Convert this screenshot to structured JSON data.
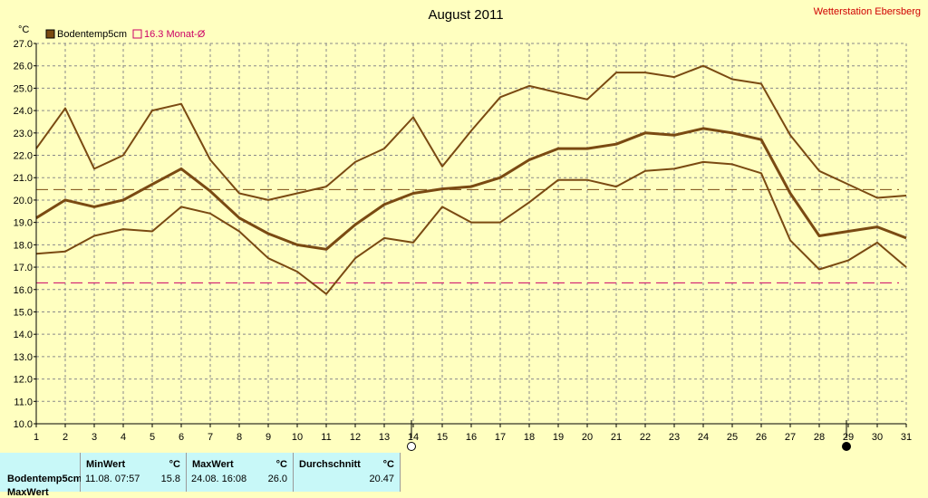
{
  "chart_data": {
    "type": "line",
    "title": "August 2011",
    "station": "Wetterstation Ebersberg",
    "ylabel": "°C",
    "ylim": [
      10.0,
      27.0
    ],
    "yticks": [
      "10.0",
      "11.0",
      "12.0",
      "13.0",
      "14.0",
      "15.0",
      "16.0",
      "17.0",
      "18.0",
      "19.0",
      "20.0",
      "21.0",
      "22.0",
      "23.0",
      "24.0",
      "25.0",
      "26.0",
      "27.0"
    ],
    "x": [
      1,
      2,
      3,
      4,
      5,
      6,
      7,
      8,
      9,
      10,
      11,
      12,
      13,
      14,
      15,
      16,
      17,
      18,
      19,
      20,
      21,
      22,
      23,
      24,
      25,
      26,
      27,
      28,
      29,
      30,
      31
    ],
    "legend": [
      {
        "label": "Bodentemp5cm",
        "color": "#7a4a12",
        "filled": true
      },
      {
        "label": "16.3 Monat-Ø",
        "color": "#cc0066",
        "filled": false
      }
    ],
    "series": [
      {
        "name": "Bodentemp5cm",
        "role": "mean",
        "color": "#7a4a12",
        "values": [
          19.2,
          20.0,
          19.7,
          20.0,
          20.7,
          21.4,
          20.4,
          19.2,
          18.5,
          18.0,
          17.8,
          18.9,
          19.8,
          20.3,
          20.5,
          20.6,
          21.0,
          21.8,
          22.3,
          22.3,
          22.5,
          23.0,
          22.9,
          23.2,
          23.0,
          22.7,
          20.3,
          18.4,
          18.6,
          18.8,
          18.3
        ]
      },
      {
        "role": "max",
        "color": "#7a4a12",
        "values": [
          22.3,
          24.1,
          21.4,
          22.0,
          24.0,
          24.3,
          21.8,
          20.3,
          20.0,
          20.3,
          20.6,
          21.7,
          22.3,
          23.7,
          21.5,
          23.1,
          24.6,
          25.1,
          24.8,
          24.5,
          25.7,
          25.7,
          25.5,
          26.0,
          25.4,
          25.2,
          22.9,
          21.3,
          20.7,
          20.1,
          20.2
        ]
      },
      {
        "role": "min",
        "color": "#7a4a12",
        "values": [
          17.6,
          17.7,
          18.4,
          18.7,
          18.6,
          19.7,
          19.4,
          18.6,
          17.4,
          16.8,
          15.8,
          17.4,
          18.3,
          18.1,
          19.7,
          19.0,
          19.0,
          19.9,
          20.9,
          20.9,
          20.6,
          21.3,
          21.4,
          21.7,
          21.6,
          21.2,
          18.2,
          16.9,
          17.3,
          18.1,
          17.0
        ]
      }
    ],
    "reference_lines": [
      {
        "value": 20.47,
        "color": "#7a4a12"
      },
      {
        "value": 16.3,
        "color": "#cc0066"
      }
    ],
    "moon_phases": [
      {
        "day": 14,
        "phase": "full-moon"
      },
      {
        "day": 29,
        "phase": "new-moon"
      }
    ],
    "grid": true
  },
  "stats": {
    "minwert": {
      "header": "MinWert",
      "unit": "°C",
      "time": "11.08.  07:57",
      "value": "15.8"
    },
    "maxwert": {
      "header": "MaxWert",
      "unit": "°C",
      "time": "24.08.  16:08",
      "value": "26.0"
    },
    "durchschnitt": {
      "header": "Durchschnitt",
      "unit": "°C",
      "value": "20.47"
    },
    "row_label": "Bodentemp5cm",
    "row_label_2": "MaxWert"
  }
}
